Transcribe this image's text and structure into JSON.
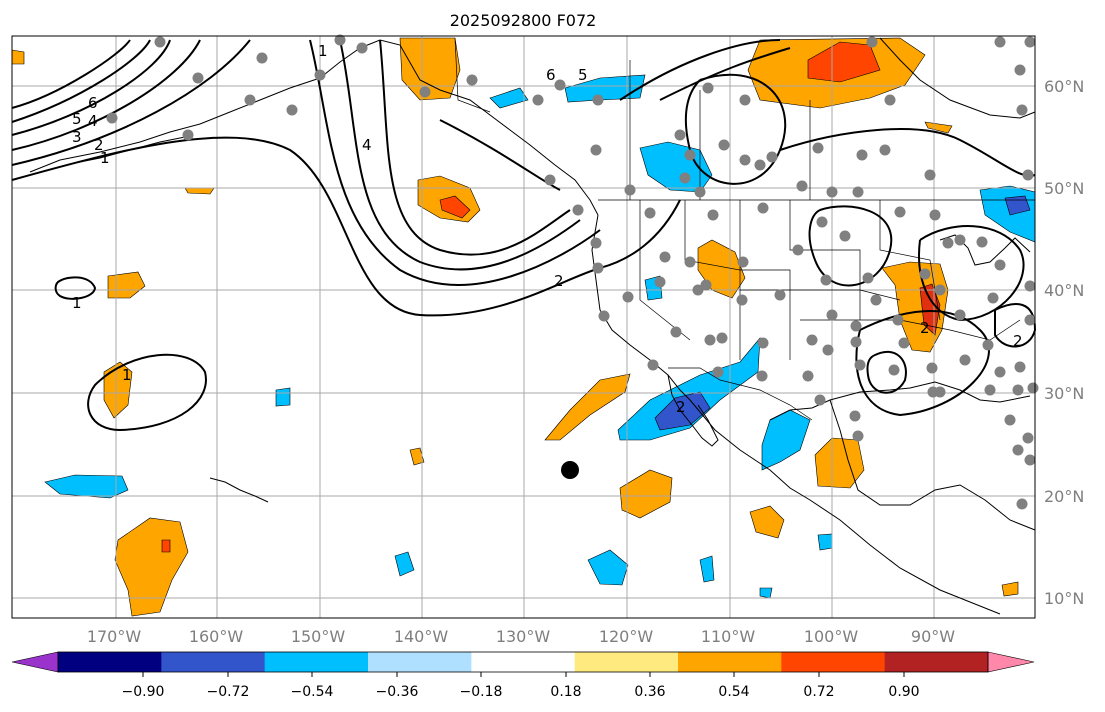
{
  "map": {
    "title": "2025092800 F072",
    "lat_labels": [
      "60°N",
      "50°N",
      "40°N",
      "30°N",
      "20°N",
      "10°N"
    ],
    "lon_labels": [
      "170°W",
      "160°W",
      "150°W",
      "140°W",
      "130°W",
      "120°W",
      "110°W",
      "100°W",
      "90°W"
    ],
    "contour_labels": [
      "6",
      "5",
      "4",
      "3",
      "2",
      "1",
      "1",
      "4",
      "6",
      "5",
      "2",
      "1",
      "1",
      "2",
      "2",
      "2"
    ]
  },
  "colorbar": {
    "tick_labels": [
      "−0.90",
      "−0.72",
      "−0.54",
      "−0.36",
      "−0.18",
      "0.18",
      "0.36",
      "0.54",
      "0.72",
      "0.90"
    ],
    "colors": [
      "#9933cc",
      "#000080",
      "#3355cc",
      "#00bfff",
      "#b0e0ff",
      "#ffffff",
      "#ffea80",
      "#ffa500",
      "#ff4500",
      "#b22222",
      "#ff88aa"
    ]
  },
  "colors": {
    "shade_orange": "#ffa500",
    "shade_red": "#ff4500",
    "shade_darkred": "#e03010",
    "shade_cyan": "#00bfff",
    "shade_blue": "#3355cc",
    "station_dot": "#808080"
  }
}
